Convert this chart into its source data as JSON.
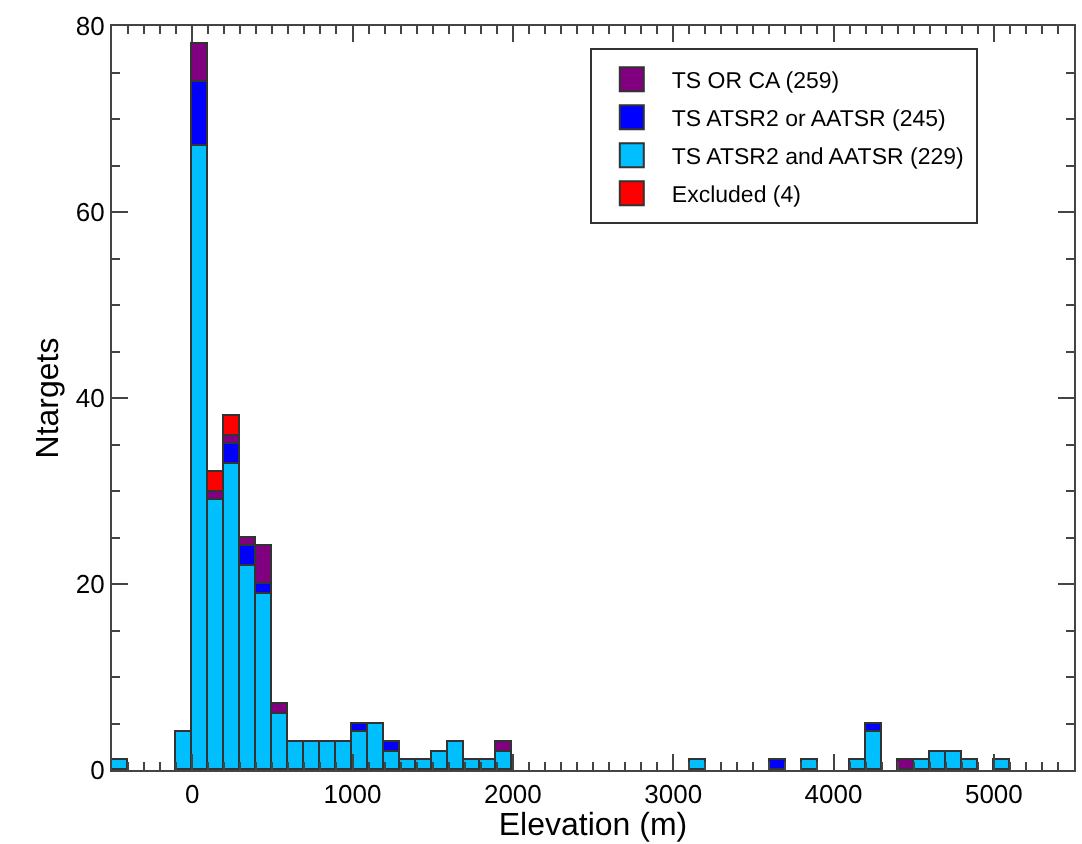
{
  "chart_data": {
    "type": "bar",
    "stacked": true,
    "xlabel": "Elevation (m)",
    "ylabel": "Ntargets",
    "x": [
      -450,
      -50,
      50,
      150,
      250,
      350,
      450,
      550,
      650,
      750,
      850,
      950,
      1050,
      1150,
      1250,
      1350,
      1450,
      1550,
      1650,
      1750,
      1850,
      1950,
      3150,
      3650,
      3850,
      4150,
      4250,
      4450,
      4550,
      4650,
      4750,
      4850,
      5050
    ],
    "series": [
      {
        "name": "TS ATSR2 and AATSR (229)",
        "color": "#00bfff",
        "values": [
          1,
          4,
          67,
          29,
          33,
          22,
          19,
          6,
          3,
          3,
          3,
          3,
          4,
          5,
          2,
          1,
          1,
          2,
          3,
          1,
          1,
          2,
          1,
          null,
          1,
          1,
          4,
          null,
          1,
          2,
          2,
          1,
          1
        ]
      },
      {
        "name": "TS ATSR2 or AATSR (245)",
        "color": "#0000ff",
        "values": [
          null,
          null,
          7,
          null,
          2,
          2,
          1,
          null,
          null,
          null,
          null,
          null,
          1,
          null,
          1,
          null,
          null,
          null,
          null,
          null,
          null,
          null,
          null,
          1,
          null,
          null,
          1,
          null,
          null,
          null,
          null,
          null,
          null
        ]
      },
      {
        "name": "TS OR CA (259)",
        "color": "#800080",
        "values": [
          null,
          null,
          4,
          1,
          1,
          1,
          4,
          1,
          null,
          null,
          null,
          null,
          null,
          null,
          null,
          null,
          null,
          null,
          null,
          null,
          null,
          1,
          null,
          null,
          null,
          null,
          null,
          1,
          null,
          null,
          null,
          null,
          null
        ]
      },
      {
        "name": "Excluded (4)",
        "color": "#ff0000",
        "values": [
          null,
          null,
          null,
          2,
          2,
          null,
          null,
          null,
          null,
          null,
          null,
          null,
          null,
          null,
          null,
          null,
          null,
          null,
          null,
          null,
          null,
          null,
          null,
          null,
          null,
          null,
          null,
          null,
          null,
          null,
          null,
          null,
          null
        ]
      }
    ],
    "xlim": [
      -500,
      5500
    ],
    "xticks": [
      0,
      1000,
      2000,
      3000,
      4000,
      5000
    ],
    "ylim": [
      0,
      80
    ],
    "yticks": [
      0,
      20,
      40,
      60,
      80
    ],
    "grid": false,
    "legend": "top right"
  }
}
